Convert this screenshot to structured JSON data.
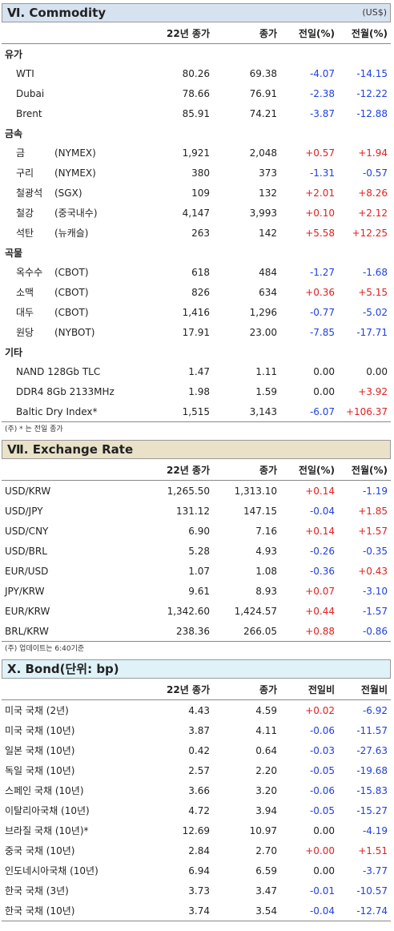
{
  "commodity": {
    "title": "Ⅵ. Commodity",
    "unit": "(US$)",
    "headers": [
      "",
      "22년 종가",
      "종가",
      "전일(%)",
      "전월(%)"
    ],
    "groups": [
      {
        "name": "유가",
        "rows": [
          {
            "a": "WTI",
            "b": "",
            "v1": "80.26",
            "v2": "69.38",
            "d": "-4.07",
            "m": "-14.15"
          },
          {
            "a": "Dubai",
            "b": "",
            "v1": "78.66",
            "v2": "76.91",
            "d": "-2.38",
            "m": "-12.22"
          },
          {
            "a": "Brent",
            "b": "",
            "v1": "85.91",
            "v2": "74.21",
            "d": "-3.87",
            "m": "-12.88"
          }
        ]
      },
      {
        "name": "금속",
        "rows": [
          {
            "a": "금",
            "b": "(NYMEX)",
            "v1": "1,921",
            "v2": "2,048",
            "d": "+0.57",
            "m": "+1.94"
          },
          {
            "a": "구리",
            "b": "(NYMEX)",
            "v1": "380",
            "v2": "373",
            "d": "-1.31",
            "m": "-0.57"
          },
          {
            "a": "철광석",
            "b": "(SGX)",
            "v1": "109",
            "v2": "132",
            "d": "+2.01",
            "m": "+8.26"
          },
          {
            "a": "철강",
            "b": "(중국내수)",
            "v1": "4,147",
            "v2": "3,993",
            "d": "+0.10",
            "m": "+2.12"
          },
          {
            "a": "석탄",
            "b": "(뉴캐슬)",
            "v1": "263",
            "v2": "142",
            "d": "+5.58",
            "m": "+12.25"
          }
        ]
      },
      {
        "name": "곡물",
        "rows": [
          {
            "a": "옥수수",
            "b": "(CBOT)",
            "v1": "618",
            "v2": "484",
            "d": "-1.27",
            "m": "-1.68"
          },
          {
            "a": "소맥",
            "b": "(CBOT)",
            "v1": "826",
            "v2": "634",
            "d": "+0.36",
            "m": "+5.15"
          },
          {
            "a": "대두",
            "b": "(CBOT)",
            "v1": "1,416",
            "v2": "1,296",
            "d": "-0.77",
            "m": "-5.02"
          },
          {
            "a": "원당",
            "b": "(NYBOT)",
            "v1": "17.91",
            "v2": "23.00",
            "d": "-7.85",
            "m": "-17.71"
          }
        ]
      },
      {
        "name": "기타",
        "rows": [
          {
            "a": "NAND 128Gb TLC",
            "b": "",
            "v1": "1.47",
            "v2": "1.11",
            "d": "0.00",
            "m": "0.00"
          },
          {
            "a": "DDR4 8Gb 2133MHz",
            "b": "",
            "v1": "1.98",
            "v2": "1.59",
            "d": "0.00",
            "m": "+3.92"
          },
          {
            "a": "Baltic Dry Index*",
            "b": "",
            "v1": "1,515",
            "v2": "3,143",
            "d": "-6.07",
            "m": "+106.37"
          }
        ]
      }
    ],
    "note": "(주) * 는 전일 종가"
  },
  "exchange": {
    "title": "Ⅶ. Exchange Rate",
    "headers": [
      "",
      "22년 종가",
      "종가",
      "전일(%)",
      "전월(%)"
    ],
    "rows": [
      {
        "a": "USD/KRW",
        "v1": "1,265.50",
        "v2": "1,313.10",
        "d": "+0.14",
        "m": "-1.19"
      },
      {
        "a": "USD/JPY",
        "v1": "131.12",
        "v2": "147.15",
        "d": "-0.04",
        "m": "+1.85"
      },
      {
        "a": "USD/CNY",
        "v1": "6.90",
        "v2": "7.16",
        "d": "+0.14",
        "m": "+1.57"
      },
      {
        "a": "USD/BRL",
        "v1": "5.28",
        "v2": "4.93",
        "d": "-0.26",
        "m": "-0.35"
      },
      {
        "a": "EUR/USD",
        "v1": "1.07",
        "v2": "1.08",
        "d": "-0.36",
        "m": "+0.43"
      },
      {
        "a": "JPY/KRW",
        "v1": "9.61",
        "v2": "8.93",
        "d": "+0.07",
        "m": "-3.10"
      },
      {
        "a": "EUR/KRW",
        "v1": "1,342.60",
        "v2": "1,424.57",
        "d": "+0.44",
        "m": "-1.57"
      },
      {
        "a": "BRL/KRW",
        "v1": "238.36",
        "v2": "266.05",
        "d": "+0.88",
        "m": "-0.86"
      }
    ],
    "note": "(주) 업데이트는 6:40기준"
  },
  "bond": {
    "title": "X. Bond(단위: bp)",
    "headers": [
      "",
      "22년 종가",
      "종가",
      "전일비",
      "전월비"
    ],
    "rows": [
      {
        "a": "미국 국채 (2년)",
        "v1": "4.43",
        "v2": "4.59",
        "d": "+0.02",
        "m": "-6.92"
      },
      {
        "a": "미국 국채 (10년)",
        "v1": "3.87",
        "v2": "4.11",
        "d": "-0.06",
        "m": "-11.57"
      },
      {
        "a": "일본 국채 (10년)",
        "v1": "0.42",
        "v2": "0.64",
        "d": "-0.03",
        "m": "-27.63"
      },
      {
        "a": "독일 국채 (10년)",
        "v1": "2.57",
        "v2": "2.20",
        "d": "-0.05",
        "m": "-19.68"
      },
      {
        "a": "스페인 국채 (10년)",
        "v1": "3.66",
        "v2": "3.20",
        "d": "-0.06",
        "m": "-15.83"
      },
      {
        "a": "이탈리아국채 (10년)",
        "v1": "4.72",
        "v2": "3.94",
        "d": "-0.05",
        "m": "-15.27"
      },
      {
        "a": "브라질 국채 (10년)*",
        "v1": "12.69",
        "v2": "10.97",
        "d": "0.00",
        "m": "-4.19"
      },
      {
        "a": "중국 국채 (10년)",
        "v1": "2.84",
        "v2": "2.70",
        "d": "+0.00",
        "m": "+1.51"
      },
      {
        "a": "인도네시아국채 (10년)",
        "v1": "6.94",
        "v2": "6.59",
        "d": "0.00",
        "m": "-3.77"
      },
      {
        "a": "한국 국채 (3년)",
        "v1": "3.73",
        "v2": "3.47",
        "d": "-0.01",
        "m": "-10.57"
      },
      {
        "a": "한국 국채 (10년)",
        "v1": "3.74",
        "v2": "3.54",
        "d": "-0.04",
        "m": "-12.74"
      }
    ]
  }
}
